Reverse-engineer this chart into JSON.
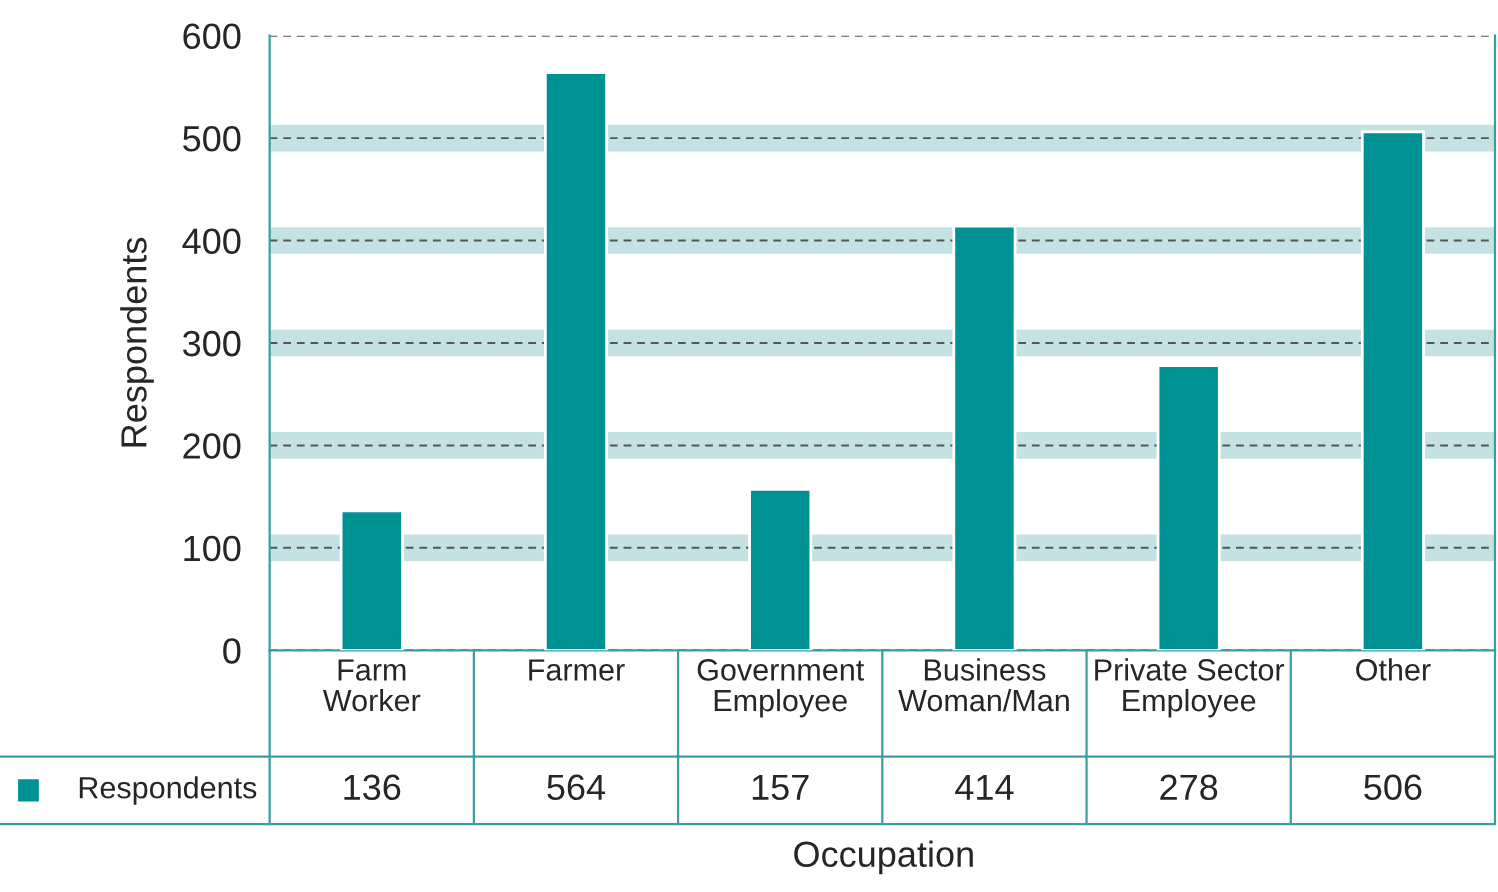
{
  "chart_data": {
    "type": "bar",
    "xlabel": "Occupation",
    "ylabel": "Respondents",
    "categories": [
      "Farm\nWorker",
      "Farmer",
      "Government\nEmployee",
      "Business\nWoman/Man",
      "Private Sector\nEmployee",
      "Other"
    ],
    "series": [
      {
        "name": "Respondents",
        "color": "#009193",
        "values": [
          136,
          564,
          157,
          414,
          278,
          506
        ]
      }
    ],
    "ylim": [
      0,
      600
    ],
    "yticks": [
      0,
      100,
      200,
      300,
      400,
      500,
      600
    ],
    "grid": "y",
    "line_style": "dashed",
    "data_labels": true,
    "bands": [
      {
        "axis": "y",
        "from": 87,
        "to": 113,
        "color": "#c4e2e4"
      },
      {
        "axis": "y",
        "from": 187,
        "to": 213,
        "color": "#c4e2e4"
      },
      {
        "axis": "y",
        "from": 287,
        "to": 313,
        "color": "#c4e2e4"
      },
      {
        "axis": "y",
        "from": 387,
        "to": 413,
        "color": "#c4e2e4"
      },
      {
        "axis": "y",
        "from": 487,
        "to": 513,
        "color": "#c4e2e4"
      }
    ]
  }
}
